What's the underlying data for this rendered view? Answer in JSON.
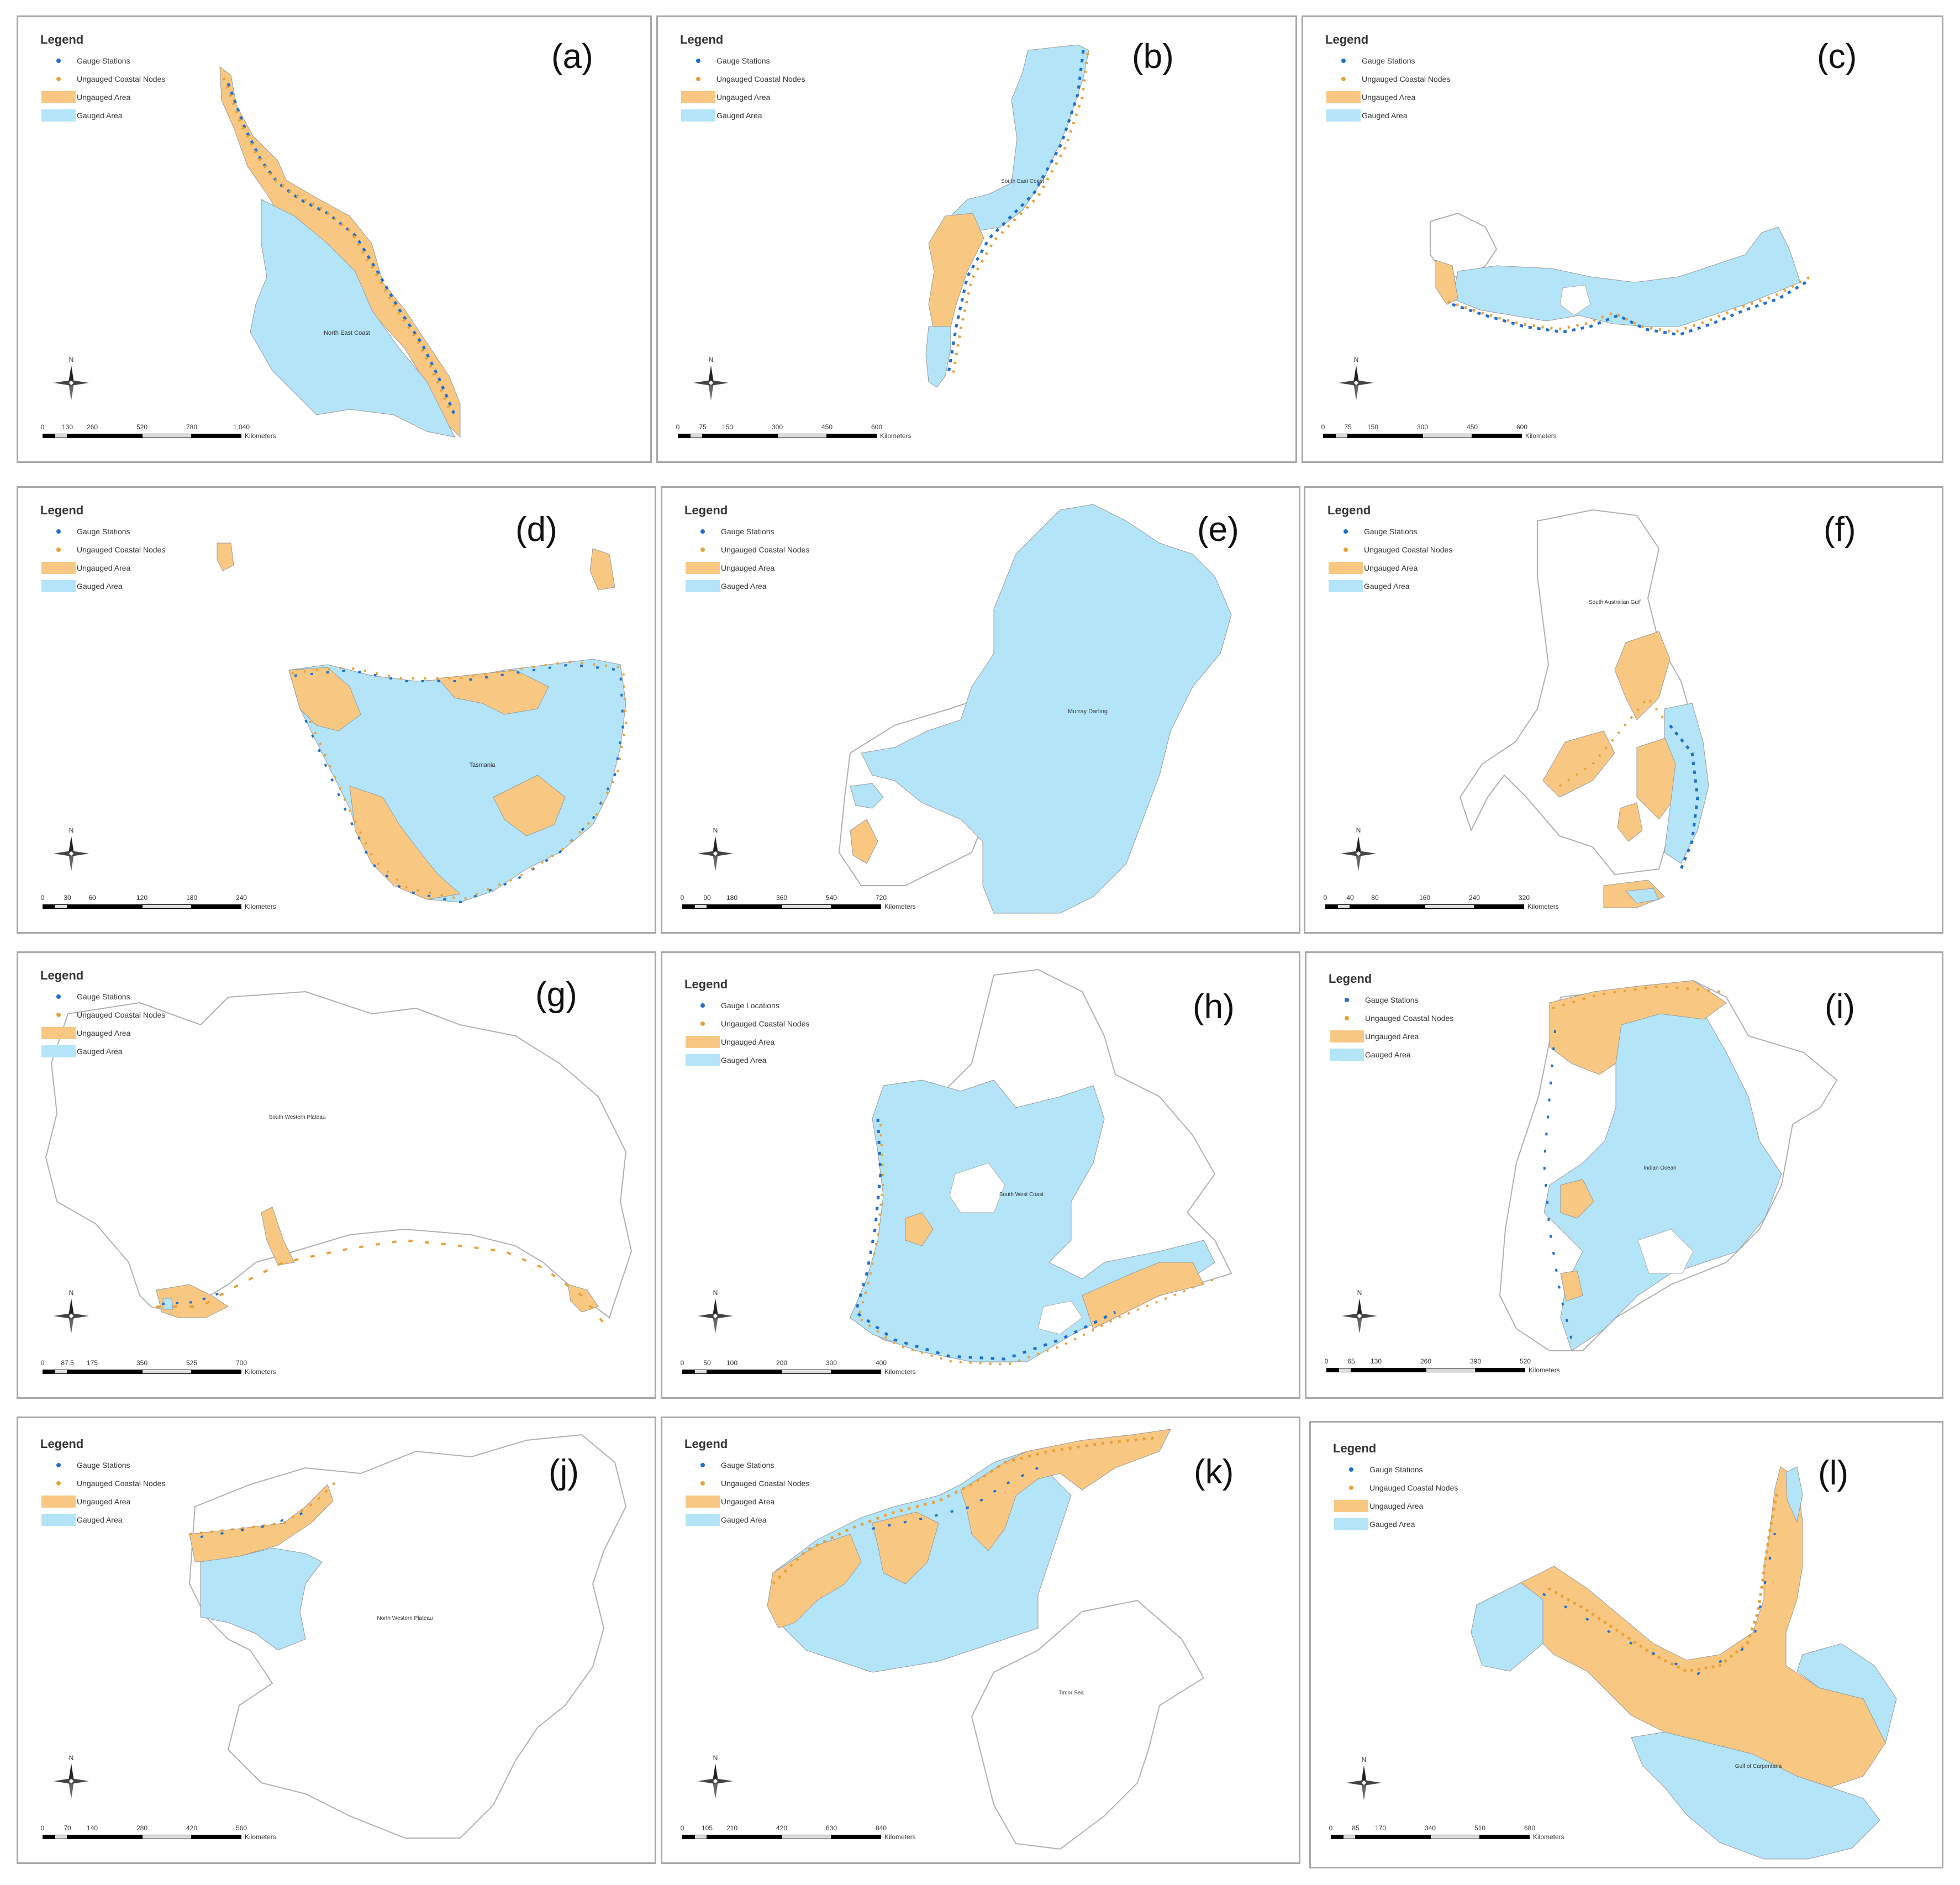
{
  "legend": {
    "title": "Legend",
    "gauge": "Gauge Stations",
    "gauge_alt": "Gauge Locations",
    "nodes": "Ungauged Coastal Nodes",
    "ungauged": "Ungauged Area",
    "gauged": "Gauged Area"
  },
  "colors": {
    "gauged": "#b3e4f7",
    "ungauged": "#f8c882",
    "station": "#1f6fcf",
    "node": "#e8a13a",
    "outline": "#b0b0b0"
  },
  "unit": "Kilometers",
  "panels": [
    {
      "tag": "(a)",
      "region": "North East Coast",
      "scale": [
        "0",
        "130",
        "260",
        "520",
        "780",
        "1,040"
      ],
      "gauge_label": "Gauge Stations"
    },
    {
      "tag": "(b)",
      "region": "South East Coast",
      "scale": [
        "0",
        "75",
        "150",
        "300",
        "450",
        "600"
      ],
      "gauge_label": "Gauge Stations"
    },
    {
      "tag": "(c)",
      "region": "",
      "scale": [
        "0",
        "75",
        "150",
        "300",
        "450",
        "600"
      ],
      "gauge_label": "Gauge Stations"
    },
    {
      "tag": "(d)",
      "region": "Tasmania",
      "scale": [
        "0",
        "30",
        "60",
        "120",
        "180",
        "240"
      ],
      "gauge_label": "Gauge Stations"
    },
    {
      "tag": "(e)",
      "region": "Murray Darling",
      "scale": [
        "0",
        "90",
        "180",
        "360",
        "540",
        "720"
      ],
      "gauge_label": "Gauge Stations"
    },
    {
      "tag": "(f)",
      "region": "South Australian Gulf",
      "scale": [
        "0",
        "40",
        "80",
        "160",
        "240",
        "320"
      ],
      "gauge_label": "Gauge Stations"
    },
    {
      "tag": "(g)",
      "region": "South Western Plateau",
      "scale": [
        "0",
        "87.5",
        "175",
        "350",
        "525",
        "700"
      ],
      "gauge_label": "Gauge Stations"
    },
    {
      "tag": "(h)",
      "region": "South West Coast",
      "scale": [
        "0",
        "50",
        "100",
        "200",
        "300",
        "400"
      ],
      "gauge_label": "Gauge Locations"
    },
    {
      "tag": "(i)",
      "region": "Indian Ocean",
      "scale": [
        "0",
        "65",
        "130",
        "260",
        "390",
        "520"
      ],
      "gauge_label": "Gauge Stations"
    },
    {
      "tag": "(j)",
      "region": "North Western Plateau",
      "scale": [
        "0",
        "70",
        "140",
        "280",
        "420",
        "560"
      ],
      "gauge_label": "Gauge Stations"
    },
    {
      "tag": "(k)",
      "region": "Timor Sea",
      "scale": [
        "0",
        "105",
        "210",
        "420",
        "630",
        "840"
      ],
      "gauge_label": "Gauge Stations"
    },
    {
      "tag": "(l)",
      "region": "Gulf of Carpentaria",
      "scale": [
        "0",
        "85",
        "170",
        "340",
        "510",
        "680"
      ],
      "gauge_label": "Gauge Stations"
    }
  ]
}
